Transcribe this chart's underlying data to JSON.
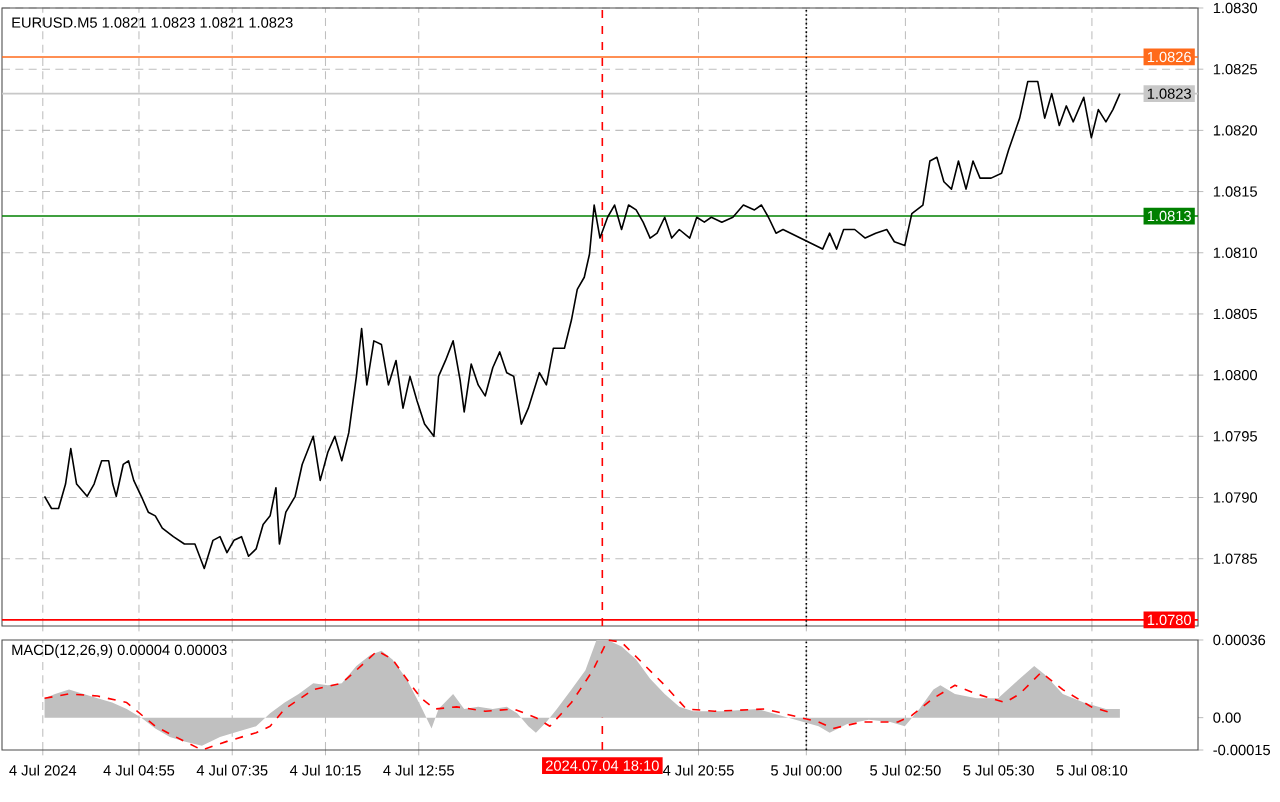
{
  "chart_data": [
    {
      "type": "line",
      "title": "EURUSD.M5 1.0821 1.0823 1.0821 1.0823",
      "color": "#000000",
      "x": [
        "2024-07-04T02:13",
        "2024-07-04T02:25",
        "2024-07-04T02:37",
        "2024-07-04T02:49",
        "2024-07-04T02:58",
        "2024-07-04T03:08",
        "2024-07-04T03:26",
        "2024-07-04T03:38",
        "2024-07-04T03:51",
        "2024-07-04T04:03",
        "2024-07-04T04:10",
        "2024-07-04T04:16",
        "2024-07-04T04:28",
        "2024-07-04T04:37",
        "2024-07-04T04:46",
        "2024-07-04T04:59",
        "2024-07-04T05:11",
        "2024-07-04T05:23",
        "2024-07-04T05:35",
        "2024-07-04T05:54",
        "2024-07-04T06:13",
        "2024-07-04T06:31",
        "2024-07-04T06:47",
        "2024-07-04T07:02",
        "2024-07-04T07:14",
        "2024-07-04T07:26",
        "2024-07-04T07:38",
        "2024-07-04T07:51",
        "2024-07-04T08:03",
        "2024-07-04T08:16",
        "2024-07-04T08:28",
        "2024-07-04T08:40",
        "2024-07-04T08:50",
        "2024-07-04T08:56",
        "2024-07-04T09:07",
        "2024-07-04T09:23",
        "2024-07-04T09:35",
        "2024-07-04T09:54",
        "2024-07-04T10:06",
        "2024-07-04T10:19",
        "2024-07-04T10:31",
        "2024-07-04T10:43",
        "2024-07-04T10:55",
        "2024-07-04T11:08",
        "2024-07-04T11:17",
        "2024-07-04T11:26",
        "2024-07-04T11:38",
        "2024-07-04T11:51",
        "2024-07-04T12:03",
        "2024-07-04T12:16",
        "2024-07-04T12:28",
        "2024-07-04T12:40",
        "2024-07-04T12:52",
        "2024-07-04T13:05",
        "2024-07-04T13:21",
        "2024-07-04T13:29",
        "2024-07-04T13:41",
        "2024-07-04T13:54",
        "2024-07-04T14:06",
        "2024-07-04T14:13",
        "2024-07-04T14:25",
        "2024-07-04T14:37",
        "2024-07-04T14:49",
        "2024-07-04T15:02",
        "2024-07-04T15:14",
        "2024-07-04T15:26",
        "2024-07-04T15:38",
        "2024-07-04T15:51",
        "2024-07-04T16:03",
        "2024-07-04T16:22",
        "2024-07-04T16:34",
        "2024-07-04T16:46",
        "2024-07-04T17:05",
        "2024-07-04T17:17",
        "2024-07-04T17:27",
        "2024-07-04T17:39",
        "2024-07-04T17:48",
        "2024-07-04T17:56",
        "2024-07-04T18:06",
        "2024-07-04T18:19",
        "2024-07-04T18:31",
        "2024-07-04T18:43",
        "2024-07-04T18:55",
        "2024-07-04T19:08",
        "2024-07-04T19:20",
        "2024-07-04T19:32",
        "2024-07-04T19:44",
        "2024-07-04T19:57",
        "2024-07-04T20:09",
        "2024-07-04T20:22",
        "2024-07-04T20:40",
        "2024-07-04T20:52",
        "2024-07-04T21:05",
        "2024-07-04T21:17",
        "2024-07-04T21:35",
        "2024-07-04T21:54",
        "2024-07-04T22:12",
        "2024-07-04T22:31",
        "2024-07-04T22:43",
        "2024-07-04T22:55",
        "2024-07-04T23:08",
        "2024-07-04T23:20",
        "2024-07-05T00:28",
        "2024-07-05T00:40",
        "2024-07-05T00:52",
        "2024-07-05T01:04",
        "2024-07-05T01:23",
        "2024-07-05T01:41",
        "2024-07-05T01:59",
        "2024-07-05T02:18",
        "2024-07-05T02:31",
        "2024-07-05T02:49",
        "2024-07-05T03:01",
        "2024-07-05T03:20",
        "2024-07-05T03:32",
        "2024-07-05T03:44",
        "2024-07-05T03:56",
        "2024-07-05T04:09",
        "2024-07-05T04:21",
        "2024-07-05T04:34",
        "2024-07-05T04:46",
        "2024-07-05T04:58",
        "2024-07-05T05:17",
        "2024-07-05T05:35",
        "2024-07-05T05:47",
        "2024-07-05T06:06",
        "2024-07-05T06:20",
        "2024-07-05T06:37",
        "2024-07-05T06:49",
        "2024-07-05T07:01",
        "2024-07-05T07:14",
        "2024-07-05T07:26",
        "2024-07-05T07:38",
        "2024-07-05T07:56",
        "2024-07-05T08:09",
        "2024-07-05T08:21",
        "2024-07-05T08:34",
        "2024-07-05T08:46",
        "2024-07-05T08:58"
      ],
      "values": [
        1.07901,
        1.07891,
        1.07891,
        1.07911,
        1.0794,
        1.07911,
        1.07901,
        1.07911,
        1.0793,
        1.0793,
        1.07911,
        1.07901,
        1.07927,
        1.0793,
        1.07914,
        1.07901,
        1.07888,
        1.07885,
        1.07875,
        1.07868,
        1.07862,
        1.07862,
        1.07842,
        1.07865,
        1.07868,
        1.07855,
        1.07865,
        1.07868,
        1.07852,
        1.07858,
        1.07878,
        1.07885,
        1.07908,
        1.07862,
        1.07888,
        1.07901,
        1.07927,
        1.0795,
        1.07914,
        1.07937,
        1.0795,
        1.0793,
        1.07953,
        1.07999,
        1.08038,
        1.07992,
        1.08028,
        1.08025,
        1.07992,
        1.08012,
        1.07973,
        1.07999,
        1.07979,
        1.0796,
        1.0795,
        1.07999,
        1.08012,
        1.08028,
        1.07996,
        1.0797,
        1.08009,
        1.07992,
        1.07983,
        1.08006,
        1.08019,
        1.08002,
        1.07999,
        1.0796,
        1.07973,
        1.08002,
        1.07992,
        1.08022,
        1.08022,
        1.08045,
        1.0807,
        1.0808,
        1.08099,
        1.08139,
        1.08112,
        1.08129,
        1.08139,
        1.08119,
        1.08139,
        1.08135,
        1.08125,
        1.08112,
        1.08116,
        1.08129,
        1.08112,
        1.08119,
        1.08112,
        1.08129,
        1.08125,
        1.08129,
        1.08125,
        1.08129,
        1.08139,
        1.08135,
        1.08139,
        1.08129,
        1.08116,
        1.08119,
        1.08103,
        1.08116,
        1.08103,
        1.08119,
        1.08119,
        1.08112,
        1.08116,
        1.08119,
        1.08109,
        1.08106,
        1.08132,
        1.08139,
        1.08175,
        1.08178,
        1.08158,
        1.08152,
        1.08175,
        1.08152,
        1.08175,
        1.08161,
        1.08161,
        1.08165,
        1.08184,
        1.0821,
        1.0824,
        1.0824,
        1.0821,
        1.0823,
        1.08204,
        1.0822,
        1.08207,
        1.08227,
        1.08194,
        1.08217,
        1.08207,
        1.08217,
        1.0823
      ],
      "xlim": [
        "2024-07-04T01:00",
        "2024-07-05T11:12"
      ],
      "ylim": [
        1.07795,
        1.083
      ],
      "xticks": [
        {
          "value": "2024-07-04T02:10",
          "label": null
        },
        {
          "value": "2024-07-04T04:55",
          "label": null
        },
        {
          "value": "2024-07-04T07:35",
          "label": null
        },
        {
          "value": "2024-07-04T10:15",
          "label": null
        },
        {
          "value": "2024-07-04T12:55",
          "label": null
        },
        {
          "value": "2024-07-04T20:55",
          "label": null
        },
        {
          "value": "2024-07-05T00:00",
          "label": null
        },
        {
          "value": "2024-07-05T02:50",
          "label": null
        },
        {
          "value": "2024-07-05T05:30",
          "label": null
        },
        {
          "value": "2024-07-05T08:10",
          "label": null
        }
      ],
      "yticks": [
        1.0785,
        {
          "value": 1.079,
          "label": "1.0790"
        },
        1.0795,
        {
          "value": 1.08,
          "label": "1.0800"
        },
        1.0805,
        {
          "value": 1.081,
          "label": "1.0810"
        },
        1.0815,
        {
          "value": 1.082,
          "label": "1.0820"
        },
        1.0825,
        {
          "value": 1.083,
          "label": "1.0830"
        }
      ],
      "grid": true,
      "tick_labels": "y",
      "ref_lines": [
        {
          "axis": "y",
          "value": 1.0826,
          "label": "1.0826",
          "color": "#ff6a1a"
        },
        {
          "axis": "y",
          "value": 1.0823,
          "label": "1.0823",
          "color": "#c8c8c8"
        },
        {
          "axis": "y",
          "value": 1.0813,
          "label": "1.0813",
          "color": "#008000"
        },
        {
          "axis": "y",
          "value": 1.078,
          "label": "1.0780",
          "color": "#ff0000"
        },
        {
          "axis": "x",
          "value": "2024-07-04T18:10",
          "color": "#ff0000",
          "line_style": "dashed"
        },
        {
          "axis": "x",
          "value": "2024-07-05T00:00",
          "color": "#000000",
          "line_style": "dotted"
        }
      ]
    },
    {
      "type": "area",
      "title": "MACD(12,26,9) 0.00004 0.00003",
      "series": [
        {
          "color": "#c0c0c0",
          "x": [
            "2024-07-04T02:13",
            "2024-07-04T02:31",
            "2024-07-04T02:55",
            "2024-07-04T03:20",
            "2024-07-04T03:44",
            "2024-07-04T04:09",
            "2024-07-04T04:34",
            "2024-07-04T04:59",
            "2024-07-04T05:23",
            "2024-07-04T05:48",
            "2024-07-04T06:13",
            "2024-07-04T06:43",
            "2024-07-04T07:14",
            "2024-07-04T07:38",
            "2024-07-04T08:16",
            "2024-07-04T08:40",
            "2024-07-04T09:05",
            "2024-07-04T09:29",
            "2024-07-04T09:54",
            "2024-07-04T10:19",
            "2024-07-04T10:43",
            "2024-07-04T11:08",
            "2024-07-04T11:32",
            "2024-07-04T11:51",
            "2024-07-04T12:10",
            "2024-07-04T12:34",
            "2024-07-04T12:59",
            "2024-07-04T13:17",
            "2024-07-04T13:29",
            "2024-07-04T13:54",
            "2024-07-04T14:13",
            "2024-07-04T14:37",
            "2024-07-04T15:02",
            "2024-07-04T15:26",
            "2024-07-04T15:44",
            "2024-07-04T16:03",
            "2024-07-04T16:16",
            "2024-07-04T16:34",
            "2024-07-04T16:52",
            "2024-07-04T17:17",
            "2024-07-04T17:41",
            "2024-07-04T18:00",
            "2024-07-04T18:19",
            "2024-07-04T18:43",
            "2024-07-04T19:08",
            "2024-07-04T19:32",
            "2024-07-04T19:57",
            "2024-07-04T20:22",
            "2024-07-04T20:46",
            "2024-07-04T21:35",
            "2024-07-04T22:37",
            "2024-07-04T23:02",
            "2024-07-05T00:21",
            "2024-07-05T00:40",
            "2024-07-05T01:10",
            "2024-07-05T01:47",
            "2024-07-05T02:24",
            "2024-07-05T02:49",
            "2024-07-05T03:14",
            "2024-07-05T03:38",
            "2024-07-05T03:50",
            "2024-07-05T04:15",
            "2024-07-05T04:52",
            "2024-07-05T05:29",
            "2024-07-05T06:06",
            "2024-07-05T06:31",
            "2024-07-05T06:49",
            "2024-07-05T07:20",
            "2024-07-05T07:56",
            "2024-07-05T08:34",
            "2024-07-05T08:58"
          ],
          "values": [
            9e-05,
            0.00011,
            0.00013,
            0.00011,
            9e-05,
            7e-05,
            4e-05,
            0,
            -5e-05,
            -9e-05,
            -0.00011,
            -0.00013,
            -9e-05,
            -7e-05,
            -4e-05,
            2e-05,
            7e-05,
            0.00011,
            0.00016,
            0.00015,
            0.00016,
            0.00024,
            0.00029,
            0.00031,
            0.00027,
            0.00018,
            5e-05,
            -5e-05,
            4e-05,
            0.00011,
            4e-05,
            5e-05,
            4e-05,
            5e-05,
            2e-05,
            -4e-05,
            -7e-05,
            -2e-05,
            4e-05,
            0.00013,
            0.00022,
            0.00036,
            0.00036,
            0.00033,
            0.00027,
            0.00018,
            0.00011,
            5e-05,
            3e-05,
            3e-05,
            4e-05,
            2e-05,
            -4e-05,
            -7e-05,
            -3e-05,
            -1e-05,
            -2e-05,
            -4e-05,
            4e-05,
            0.00013,
            0.00015,
            0.00011,
            9e-05,
            9e-05,
            0.00018,
            0.00024,
            0.0002,
            0.00011,
            7e-05,
            4e-05,
            4e-05
          ]
        },
        {
          "type": "line",
          "line_style": "dashed",
          "color": "#ff0000",
          "x": [
            "2024-07-04T02:13",
            "2024-07-04T02:55",
            "2024-07-04T03:44",
            "2024-07-04T04:34",
            "2024-07-04T05:23",
            "2024-07-04T06:13",
            "2024-07-04T06:43",
            "2024-07-04T07:26",
            "2024-07-04T08:16",
            "2024-07-04T08:40",
            "2024-07-04T09:05",
            "2024-07-04T09:54",
            "2024-07-04T10:43",
            "2024-07-04T11:08",
            "2024-07-04T11:44",
            "2024-07-04T12:10",
            "2024-07-04T12:34",
            "2024-07-04T12:59",
            "2024-07-04T13:23",
            "2024-07-04T14:00",
            "2024-07-04T14:49",
            "2024-07-04T15:38",
            "2024-07-04T16:16",
            "2024-07-04T16:40",
            "2024-07-04T17:17",
            "2024-07-04T17:54",
            "2024-07-04T18:19",
            "2024-07-04T18:43",
            "2024-07-04T19:20",
            "2024-07-04T19:57",
            "2024-07-04T20:34",
            "2024-07-04T21:23",
            "2024-07-04T22:49",
            "2024-07-05T00:21",
            "2024-07-05T00:46",
            "2024-07-05T01:35",
            "2024-07-05T02:37",
            "2024-07-05T03:01",
            "2024-07-05T03:38",
            "2024-07-05T04:15",
            "2024-07-05T04:52",
            "2024-07-05T05:41",
            "2024-07-05T06:06",
            "2024-07-05T06:43",
            "2024-07-05T07:20",
            "2024-07-05T08:09",
            "2024-07-05T08:46"
          ],
          "values": [
            9e-05,
            0.00011,
            0.0001,
            7e-05,
            -4e-05,
            -0.00011,
            -0.00015,
            -0.00011,
            -7e-05,
            -4e-05,
            4e-05,
            0.00013,
            0.00016,
            0.00022,
            0.00031,
            0.00027,
            0.00018,
            9e-05,
            4e-05,
            5e-05,
            3e-05,
            4e-05,
            0,
            -4e-05,
            7e-05,
            0.00022,
            0.00036,
            0.00035,
            0.00025,
            0.00015,
            4e-05,
            3e-05,
            4e-05,
            -2e-05,
            -5e-05,
            -2e-05,
            -2e-05,
            1e-05,
            9e-05,
            0.00015,
            0.00011,
            7e-05,
            0.00011,
            0.00021,
            0.00013,
            5e-05,
            2e-05
          ]
        }
      ],
      "xlim": [
        "2024-07-04T01:00",
        "2024-07-05T11:12"
      ],
      "ylim": [
        -0.00015,
        0.00036
      ],
      "xticks": [
        {
          "value": "2024-07-04T02:10",
          "label": "4 Jul 2024"
        },
        {
          "value": "2024-07-04T04:55",
          "label": "4 Jul 04:55"
        },
        {
          "value": "2024-07-04T07:35",
          "label": "4 Jul 07:35"
        },
        {
          "value": "2024-07-04T10:15",
          "label": "4 Jul 10:15"
        },
        {
          "value": "2024-07-04T12:55",
          "label": "4 Jul 12:55"
        },
        {
          "value": "2024-07-04T20:55",
          "label": "4 Jul 20:55"
        },
        {
          "value": "2024-07-05T00:00",
          "label": "5 Jul 00:00"
        },
        {
          "value": "2024-07-05T02:50",
          "label": "5 Jul 02:50"
        },
        {
          "value": "2024-07-05T05:30",
          "label": "5 Jul 05:30"
        },
        {
          "value": "2024-07-05T08:10",
          "label": "5 Jul 08:10"
        }
      ],
      "yticks": [
        0.00036,
        {
          "value": 0,
          "label": "0.00"
        },
        -0.00015
      ],
      "grid": "x",
      "ref_lines": [
        {
          "axis": "x",
          "value": "2024-07-04T18:10",
          "label": "2024.07.04 18:10",
          "color": "#ff0000",
          "line_style": "dashed"
        },
        {
          "axis": "x",
          "value": "2024-07-05T00:00",
          "color": "#000000",
          "line_style": "dotted"
        }
      ]
    }
  ]
}
